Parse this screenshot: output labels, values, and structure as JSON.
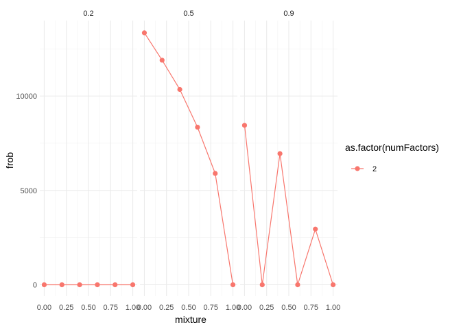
{
  "chart_data": {
    "type": "line",
    "xlabel": "mixture",
    "ylabel": "frob",
    "x_ticks": [
      "0.00",
      "0.25",
      "0.50",
      "0.75",
      "1.00"
    ],
    "y_ticks": [
      "0",
      "5000",
      "10000"
    ],
    "xlim": [
      -0.05,
      1.05
    ],
    "ylim": [
      -600,
      14000
    ],
    "y_tick_values": [
      0,
      5000,
      10000
    ],
    "x_tick_values": [
      0,
      0.25,
      0.5,
      0.75,
      1.0
    ],
    "grid": true,
    "legend": {
      "title": "as.factor(numFactors)",
      "entries": [
        {
          "label": "2",
          "color": "#F8766D"
        }
      ],
      "placement": "right"
    },
    "facets": [
      {
        "label": "0.2",
        "series": [
          {
            "name": "2",
            "x": [
              0,
              0.2,
              0.4,
              0.6,
              0.8,
              1.0
            ],
            "y": [
              0,
              0,
              0,
              0,
              0,
              0
            ]
          }
        ]
      },
      {
        "label": "0.5",
        "series": [
          {
            "name": "2",
            "x": [
              0,
              0.2,
              0.4,
              0.6,
              0.8,
              1.0
            ],
            "y": [
              13350,
              11900,
              10350,
              8350,
              5900,
              0
            ]
          }
        ]
      },
      {
        "label": "0.9",
        "series": [
          {
            "name": "2",
            "x": [
              0,
              0.2,
              0.4,
              0.6,
              0.8,
              1.0
            ],
            "y": [
              8450,
              0,
              6950,
              0,
              2950,
              0
            ]
          }
        ]
      }
    ]
  }
}
